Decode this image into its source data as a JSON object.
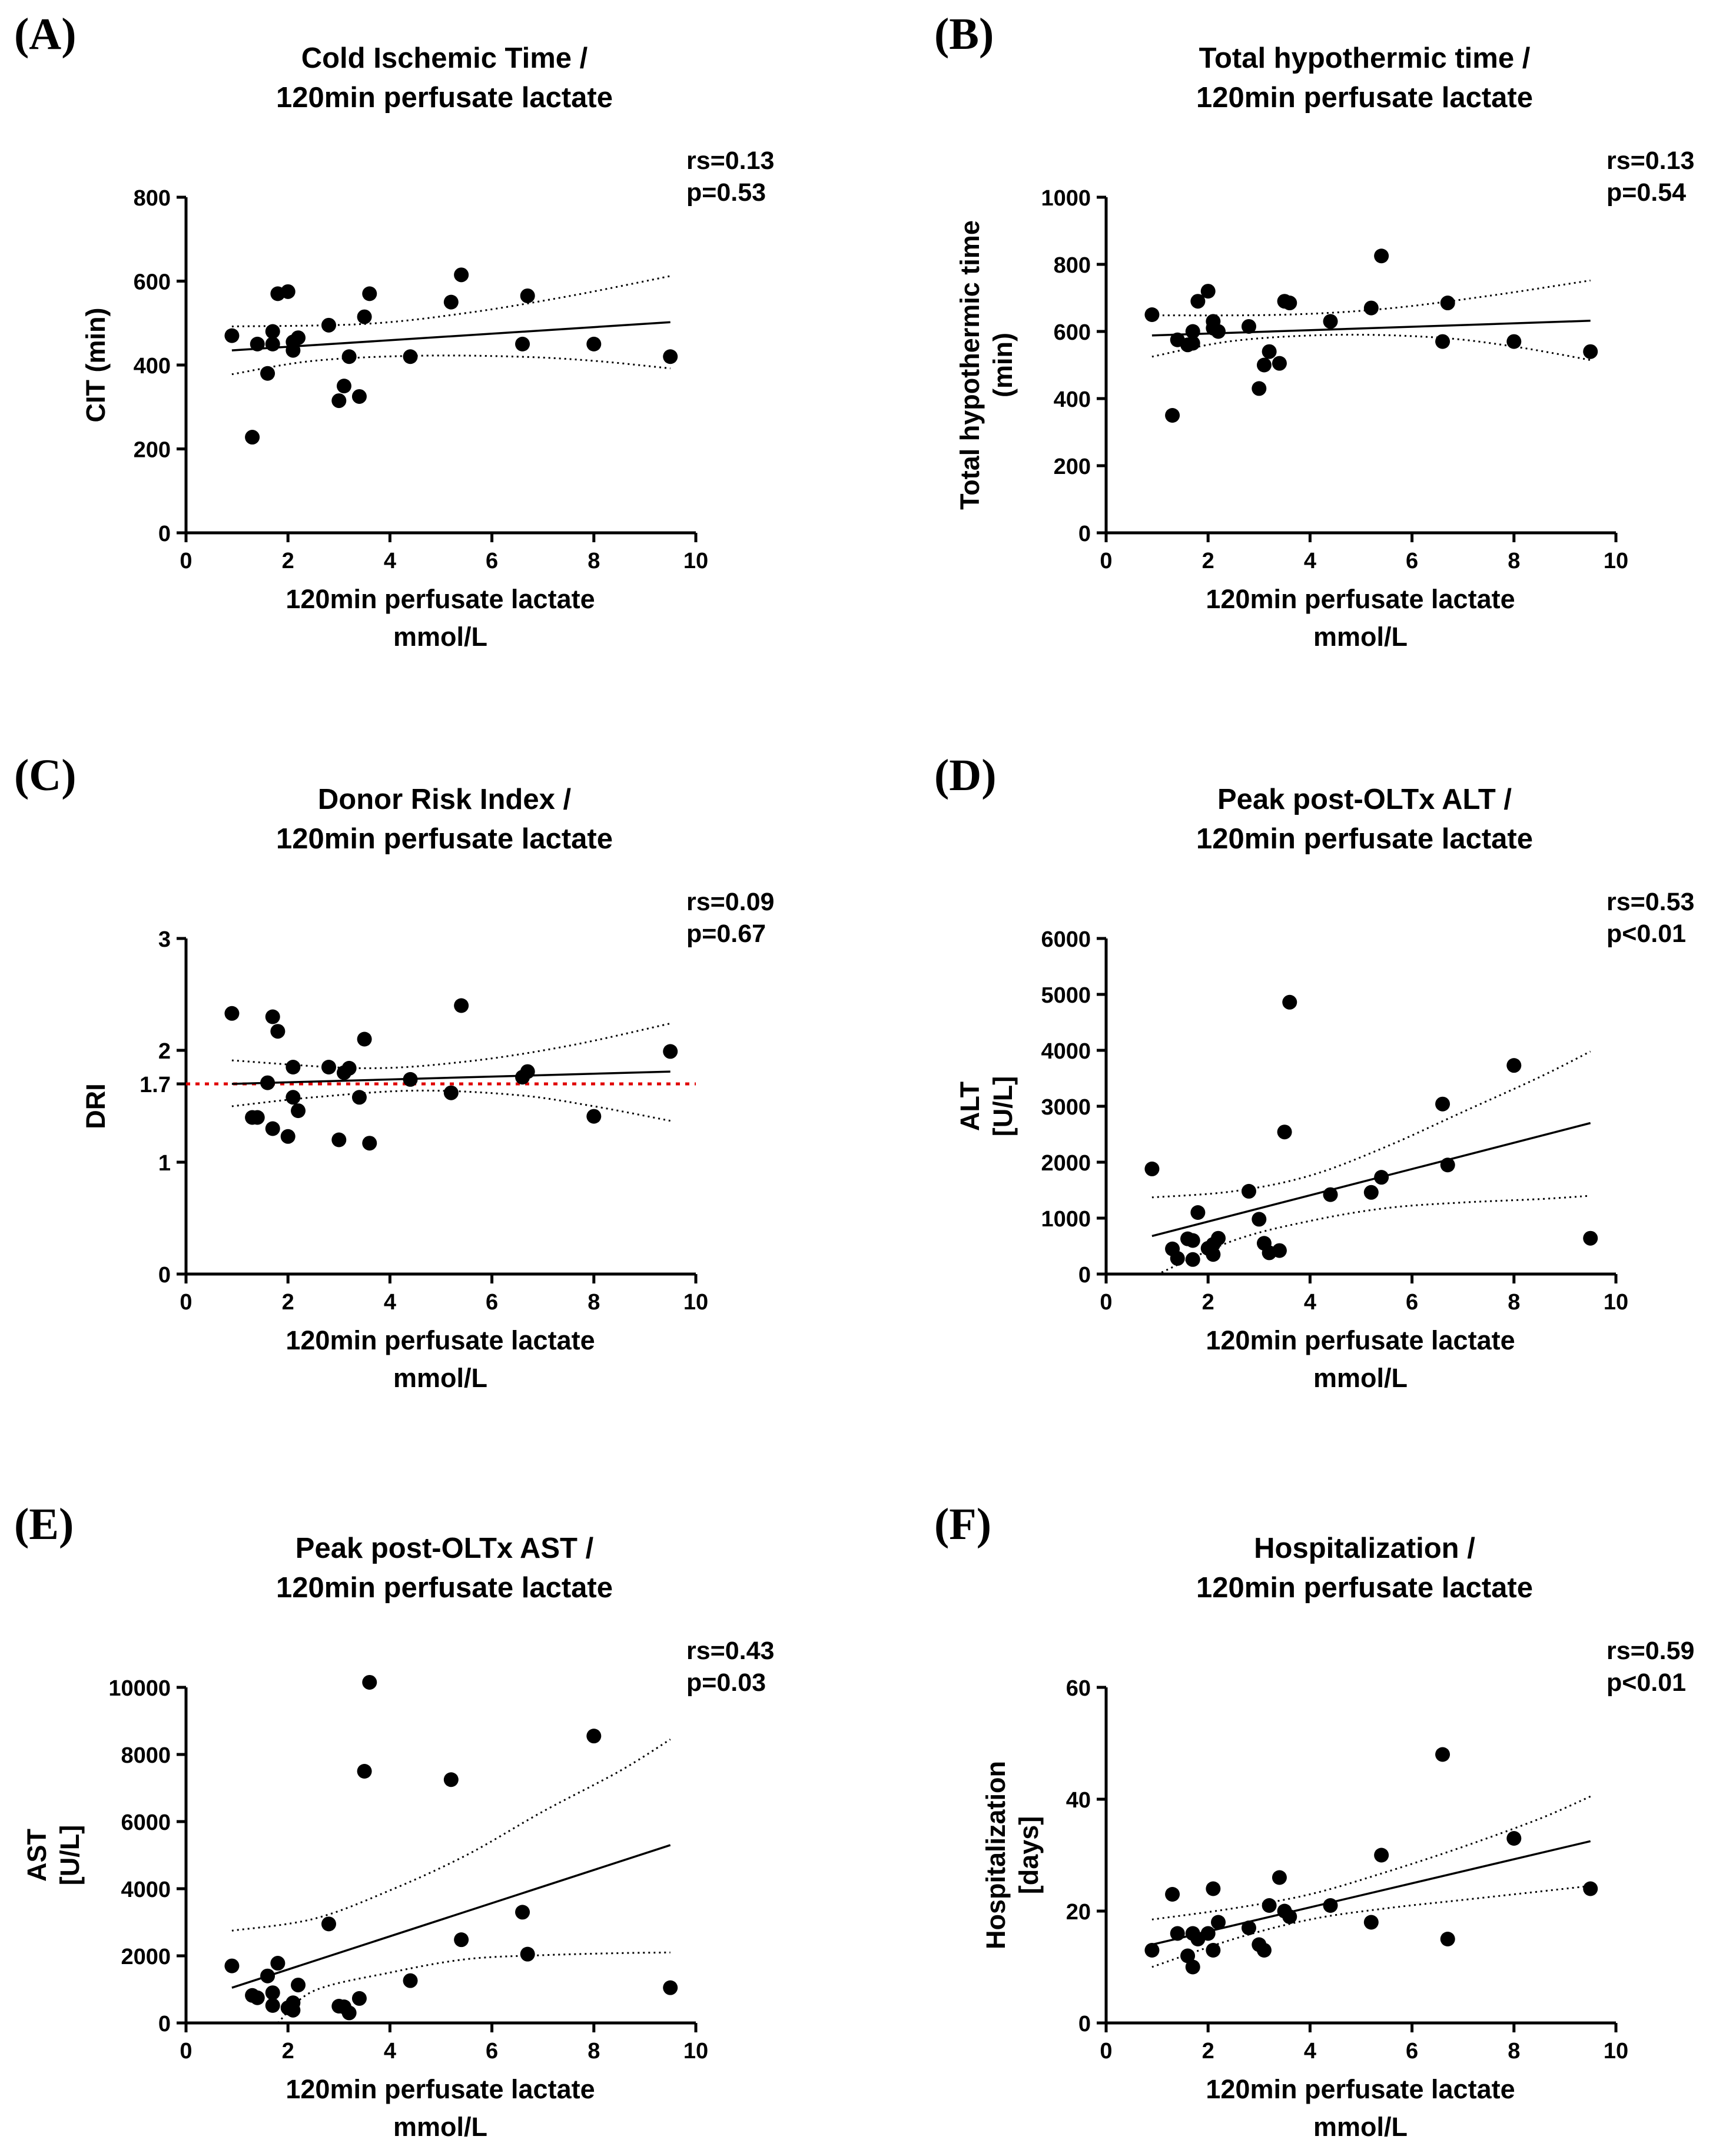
{
  "chart_data": [
    {
      "type": "scatter",
      "panel_label": "(A)",
      "title": [
        "Cold Ischemic Time /",
        "120min perfusate lactate"
      ],
      "stats": [
        "rs=0.13",
        "p=0.53"
      ],
      "xlabel": [
        "120min perfusate lactate",
        "mmol/L"
      ],
      "ylabel": [
        "CIT (min)"
      ],
      "xlim": [
        0,
        10
      ],
      "ylim": [
        0,
        800
      ],
      "xticks": [
        0,
        2,
        4,
        6,
        8,
        10
      ],
      "yticks": [
        0,
        200,
        400,
        600,
        800
      ],
      "ytick_labels": [
        "0",
        "200",
        "400",
        "600",
        "800"
      ],
      "points": [
        [
          0.9,
          470
        ],
        [
          1.3,
          228
        ],
        [
          1.4,
          450
        ],
        [
          1.6,
          380
        ],
        [
          1.7,
          450
        ],
        [
          1.7,
          480
        ],
        [
          1.8,
          570
        ],
        [
          2.0,
          575
        ],
        [
          2.1,
          435
        ],
        [
          2.1,
          455
        ],
        [
          2.2,
          465
        ],
        [
          2.8,
          495
        ],
        [
          3.0,
          315
        ],
        [
          3.1,
          350
        ],
        [
          3.2,
          420
        ],
        [
          3.4,
          325
        ],
        [
          3.5,
          515
        ],
        [
          3.6,
          570
        ],
        [
          4.4,
          420
        ],
        [
          5.2,
          550
        ],
        [
          5.4,
          615
        ],
        [
          6.6,
          450
        ],
        [
          6.7,
          565
        ],
        [
          8.0,
          450
        ],
        [
          9.5,
          420
        ]
      ],
      "fit": [
        [
          0.9,
          435
        ],
        [
          9.5,
          502
        ]
      ],
      "ci_upper": [
        [
          0.9,
          492
        ],
        [
          3.5,
          498
        ],
        [
          5.5,
          524
        ],
        [
          7.5,
          564
        ],
        [
          9.5,
          612
        ]
      ],
      "ci_lower": [
        [
          0.9,
          378
        ],
        [
          2.5,
          410
        ],
        [
          4.5,
          422
        ],
        [
          6.5,
          420
        ],
        [
          8,
          410
        ],
        [
          9.5,
          392
        ]
      ]
    },
    {
      "type": "scatter",
      "panel_label": "(B)",
      "title": [
        "Total hypothermic time /",
        "120min perfusate lactate"
      ],
      "stats": [
        "rs=0.13",
        "p=0.54"
      ],
      "xlabel": [
        "120min perfusate lactate",
        "mmol/L"
      ],
      "ylabel": [
        "Total hypothermic time",
        "(min)"
      ],
      "xlim": [
        0,
        10
      ],
      "ylim": [
        0,
        1000
      ],
      "xticks": [
        0,
        2,
        4,
        6,
        8,
        10
      ],
      "yticks": [
        0,
        200,
        400,
        600,
        800,
        1000
      ],
      "ytick_labels": [
        "0",
        "200",
        "400",
        "600",
        "800",
        "1000"
      ],
      "points": [
        [
          0.9,
          650
        ],
        [
          1.3,
          350
        ],
        [
          1.4,
          575
        ],
        [
          1.6,
          560
        ],
        [
          1.7,
          565
        ],
        [
          1.7,
          600
        ],
        [
          1.8,
          690
        ],
        [
          2.0,
          720
        ],
        [
          2.1,
          630
        ],
        [
          2.1,
          610
        ],
        [
          2.2,
          600
        ],
        [
          2.8,
          615
        ],
        [
          3.0,
          430
        ],
        [
          3.1,
          500
        ],
        [
          3.2,
          540
        ],
        [
          3.4,
          505
        ],
        [
          3.5,
          690
        ],
        [
          3.6,
          685
        ],
        [
          4.4,
          630
        ],
        [
          5.2,
          670
        ],
        [
          5.4,
          825
        ],
        [
          6.6,
          570
        ],
        [
          6.7,
          685
        ],
        [
          8.0,
          570
        ],
        [
          9.5,
          540
        ]
      ],
      "fit": [
        [
          0.9,
          588
        ],
        [
          9.5,
          632
        ]
      ],
      "ci_upper": [
        [
          0.9,
          648
        ],
        [
          3.5,
          650
        ],
        [
          5.5,
          668
        ],
        [
          7.5,
          706
        ],
        [
          9.5,
          752
        ]
      ],
      "ci_lower": [
        [
          0.9,
          525
        ],
        [
          2.5,
          572
        ],
        [
          4.5,
          590
        ],
        [
          6.5,
          582
        ],
        [
          8,
          555
        ],
        [
          9.5,
          515
        ]
      ]
    },
    {
      "type": "scatter",
      "panel_label": "(C)",
      "title": [
        "Donor Risk Index /",
        "120min perfusate lactate"
      ],
      "stats": [
        "rs=0.09",
        "p=0.67"
      ],
      "xlabel": [
        "120min perfusate lactate",
        "mmol/L"
      ],
      "ylabel": [
        "DRI"
      ],
      "xlim": [
        0,
        10
      ],
      "ylim": [
        0,
        3
      ],
      "xticks": [
        0,
        2,
        4,
        6,
        8,
        10
      ],
      "yticks": [
        0,
        1,
        1.7,
        2,
        3
      ],
      "ytick_labels": [
        "0",
        "1",
        "1.7",
        "2",
        "3"
      ],
      "reference_line": {
        "y": 1.7,
        "label": "1.7",
        "color": "#e00000"
      },
      "points": [
        [
          0.9,
          2.33
        ],
        [
          1.3,
          1.4
        ],
        [
          1.4,
          1.4
        ],
        [
          1.6,
          1.71
        ],
        [
          1.7,
          1.3
        ],
        [
          1.7,
          2.3
        ],
        [
          1.8,
          2.17
        ],
        [
          2.0,
          1.23
        ],
        [
          2.1,
          1.85
        ],
        [
          2.1,
          1.58
        ],
        [
          2.2,
          1.46
        ],
        [
          2.8,
          1.85
        ],
        [
          3.0,
          1.2
        ],
        [
          3.1,
          1.8
        ],
        [
          3.2,
          1.84
        ],
        [
          3.4,
          1.58
        ],
        [
          3.5,
          2.1
        ],
        [
          3.6,
          1.17
        ],
        [
          4.4,
          1.74
        ],
        [
          5.2,
          1.62
        ],
        [
          5.4,
          2.4
        ],
        [
          6.6,
          1.76
        ],
        [
          6.7,
          1.81
        ],
        [
          8.0,
          1.41
        ],
        [
          9.5,
          1.99
        ]
      ],
      "fit": [
        [
          0.9,
          1.7
        ],
        [
          9.5,
          1.81
        ]
      ],
      "ci_upper": [
        [
          0.9,
          1.91
        ],
        [
          3.5,
          1.84
        ],
        [
          5.5,
          1.9
        ],
        [
          7.5,
          2.04
        ],
        [
          9.5,
          2.24
        ]
      ],
      "ci_lower": [
        [
          0.9,
          1.5
        ],
        [
          2.5,
          1.58
        ],
        [
          4.5,
          1.64
        ],
        [
          6.5,
          1.6
        ],
        [
          8,
          1.5
        ],
        [
          9.5,
          1.37
        ]
      ]
    },
    {
      "type": "scatter",
      "panel_label": "(D)",
      "title": [
        "Peak post-OLTx ALT /",
        "120min perfusate lactate"
      ],
      "stats": [
        "rs=0.53",
        "p<0.01"
      ],
      "xlabel": [
        "120min perfusate lactate",
        "mmol/L"
      ],
      "ylabel": [
        "ALT",
        "[U/L]"
      ],
      "xlim": [
        0,
        10
      ],
      "ylim": [
        0,
        6000
      ],
      "xticks": [
        0,
        2,
        4,
        6,
        8,
        10
      ],
      "yticks": [
        0,
        1000,
        2000,
        3000,
        4000,
        5000,
        6000
      ],
      "ytick_labels": [
        "0",
        "1000",
        "2000",
        "3000",
        "4000",
        "5000",
        "6000"
      ],
      "points": [
        [
          0.9,
          1880
        ],
        [
          1.3,
          450
        ],
        [
          1.4,
          280
        ],
        [
          1.6,
          630
        ],
        [
          1.7,
          260
        ],
        [
          1.7,
          600
        ],
        [
          1.8,
          1100
        ],
        [
          2.0,
          460
        ],
        [
          2.1,
          350
        ],
        [
          2.1,
          530
        ],
        [
          2.2,
          640
        ],
        [
          2.8,
          1480
        ],
        [
          3.0,
          980
        ],
        [
          3.1,
          550
        ],
        [
          3.2,
          380
        ],
        [
          3.4,
          420
        ],
        [
          3.5,
          2540
        ],
        [
          3.6,
          4860
        ],
        [
          4.4,
          1420
        ],
        [
          5.2,
          1460
        ],
        [
          5.4,
          1730
        ],
        [
          6.6,
          3040
        ],
        [
          6.7,
          1950
        ],
        [
          8.0,
          3730
        ],
        [
          9.5,
          640
        ]
      ],
      "fit": [
        [
          0.9,
          680
        ],
        [
          9.5,
          2700
        ]
      ],
      "ci_upper": [
        [
          0.9,
          1370
        ],
        [
          2.5,
          1480
        ],
        [
          4,
          1760
        ],
        [
          5.5,
          2280
        ],
        [
          7,
          2900
        ],
        [
          8.5,
          3520
        ],
        [
          9.5,
          3980
        ]
      ],
      "ci_lower": [
        [
          0.9,
          -50
        ],
        [
          2.5,
          600
        ],
        [
          4,
          950
        ],
        [
          5.5,
          1180
        ],
        [
          7,
          1280
        ],
        [
          8.5,
          1340
        ],
        [
          9.5,
          1400
        ]
      ]
    },
    {
      "type": "scatter",
      "panel_label": "(E)",
      "title": [
        "Peak post-OLTx AST /",
        "120min perfusate lactate"
      ],
      "stats": [
        "rs=0.43",
        "p=0.03"
      ],
      "xlabel": [
        "120min perfusate lactate",
        "mmol/L"
      ],
      "ylabel": [
        "AST",
        "[U/L]"
      ],
      "xlim": [
        0,
        10
      ],
      "ylim": [
        0,
        10000
      ],
      "xticks": [
        0,
        2,
        4,
        6,
        8,
        10
      ],
      "yticks": [
        0,
        2000,
        4000,
        6000,
        8000,
        10000
      ],
      "ytick_labels": [
        "0",
        "2000",
        "4000",
        "6000",
        "8000",
        "10000"
      ],
      "points": [
        [
          0.9,
          1700
        ],
        [
          1.3,
          820
        ],
        [
          1.4,
          750
        ],
        [
          1.6,
          1400
        ],
        [
          1.7,
          900
        ],
        [
          1.7,
          520
        ],
        [
          1.8,
          1780
        ],
        [
          2.0,
          450
        ],
        [
          2.1,
          600
        ],
        [
          2.1,
          380
        ],
        [
          2.2,
          1130
        ],
        [
          2.8,
          2950
        ],
        [
          3.0,
          500
        ],
        [
          3.1,
          480
        ],
        [
          3.2,
          300
        ],
        [
          3.4,
          730
        ],
        [
          3.5,
          7500
        ],
        [
          3.6,
          10150
        ],
        [
          4.4,
          1260
        ],
        [
          5.2,
          7250
        ],
        [
          5.4,
          2480
        ],
        [
          6.6,
          3300
        ],
        [
          6.7,
          2050
        ],
        [
          8.0,
          8550
        ],
        [
          9.5,
          1050
        ]
      ],
      "fit": [
        [
          0.9,
          1050
        ],
        [
          9.5,
          5300
        ]
      ],
      "ci_upper": [
        [
          0.9,
          2750
        ],
        [
          2.5,
          3100
        ],
        [
          4,
          3950
        ],
        [
          5.5,
          5000
        ],
        [
          7,
          6300
        ],
        [
          8.5,
          7500
        ],
        [
          9.5,
          8450
        ]
      ],
      "ci_lower": [
        [
          1.8,
          0
        ],
        [
          2.5,
          950
        ],
        [
          4,
          1500
        ],
        [
          5.5,
          1900
        ],
        [
          7,
          2020
        ],
        [
          8.5,
          2080
        ],
        [
          9.5,
          2100
        ]
      ]
    },
    {
      "type": "scatter",
      "panel_label": "(F)",
      "title": [
        "Hospitalization  /",
        "120min perfusate lactate"
      ],
      "stats": [
        "rs=0.59",
        "p<0.01"
      ],
      "xlabel": [
        "120min perfusate lactate",
        "mmol/L"
      ],
      "ylabel": [
        "Hospitalization",
        "[days]"
      ],
      "xlim": [
        0,
        10
      ],
      "ylim": [
        0,
        60
      ],
      "xticks": [
        0,
        2,
        4,
        6,
        8,
        10
      ],
      "yticks": [
        0,
        20,
        40,
        60
      ],
      "ytick_labels": [
        "0",
        "20",
        "40",
        "60"
      ],
      "points": [
        [
          0.9,
          13
        ],
        [
          1.3,
          23
        ],
        [
          1.4,
          16
        ],
        [
          1.6,
          12
        ],
        [
          1.7,
          10
        ],
        [
          1.7,
          16
        ],
        [
          1.8,
          15
        ],
        [
          2.0,
          16
        ],
        [
          2.1,
          13
        ],
        [
          2.1,
          24
        ],
        [
          2.2,
          18
        ],
        [
          2.8,
          17
        ],
        [
          3.0,
          14
        ],
        [
          3.1,
          13
        ],
        [
          3.2,
          21
        ],
        [
          3.4,
          26
        ],
        [
          3.5,
          20
        ],
        [
          3.6,
          19
        ],
        [
          4.4,
          21
        ],
        [
          5.2,
          18
        ],
        [
          5.4,
          30
        ],
        [
          6.6,
          48
        ],
        [
          6.7,
          15
        ],
        [
          8.0,
          33
        ],
        [
          9.5,
          24
        ]
      ],
      "fit": [
        [
          0.9,
          14
        ],
        [
          9.5,
          32.5
        ]
      ],
      "ci_upper": [
        [
          0.9,
          18.5
        ],
        [
          2.5,
          20.5
        ],
        [
          4,
          23
        ],
        [
          5.5,
          27
        ],
        [
          7,
          31.5
        ],
        [
          8.5,
          36.5
        ],
        [
          9.5,
          40.5
        ]
      ],
      "ci_lower": [
        [
          0.9,
          10
        ],
        [
          2.5,
          15
        ],
        [
          4,
          18.5
        ],
        [
          5.5,
          20.5
        ],
        [
          7,
          22
        ],
        [
          8.5,
          23.5
        ],
        [
          9.5,
          24.5
        ]
      ]
    }
  ]
}
